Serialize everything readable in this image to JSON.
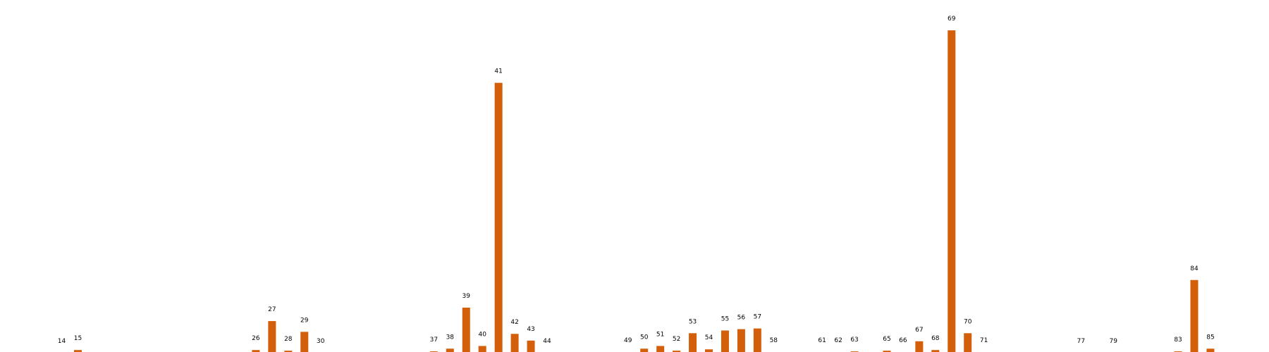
{
  "chart_data": {
    "type": "bar",
    "categories": [
      "14",
      "15",
      "26",
      "27",
      "28",
      "29",
      "30",
      "37",
      "38",
      "39",
      "40",
      "41",
      "42",
      "43",
      "44",
      "49",
      "50",
      "51",
      "52",
      "53",
      "54",
      "55",
      "56",
      "57",
      "58",
      "61",
      "62",
      "63",
      "65",
      "66",
      "67",
      "68",
      "69",
      "70",
      "71",
      "77",
      "79",
      "83",
      "84",
      "85"
    ],
    "values": [
      0,
      4,
      4,
      47,
      3,
      31,
      0,
      2,
      6,
      67,
      10,
      401,
      28,
      18,
      0,
      1,
      6,
      10,
      3,
      29,
      5,
      33,
      35,
      36,
      1,
      1,
      1,
      2,
      3,
      1,
      17,
      4,
      479,
      29,
      1,
      0,
      0,
      2,
      108,
      6
    ],
    "ylim": [
      0,
      500
    ],
    "color": "#d45f0b",
    "xlabel": "",
    "ylabel": "",
    "grid": false
  }
}
